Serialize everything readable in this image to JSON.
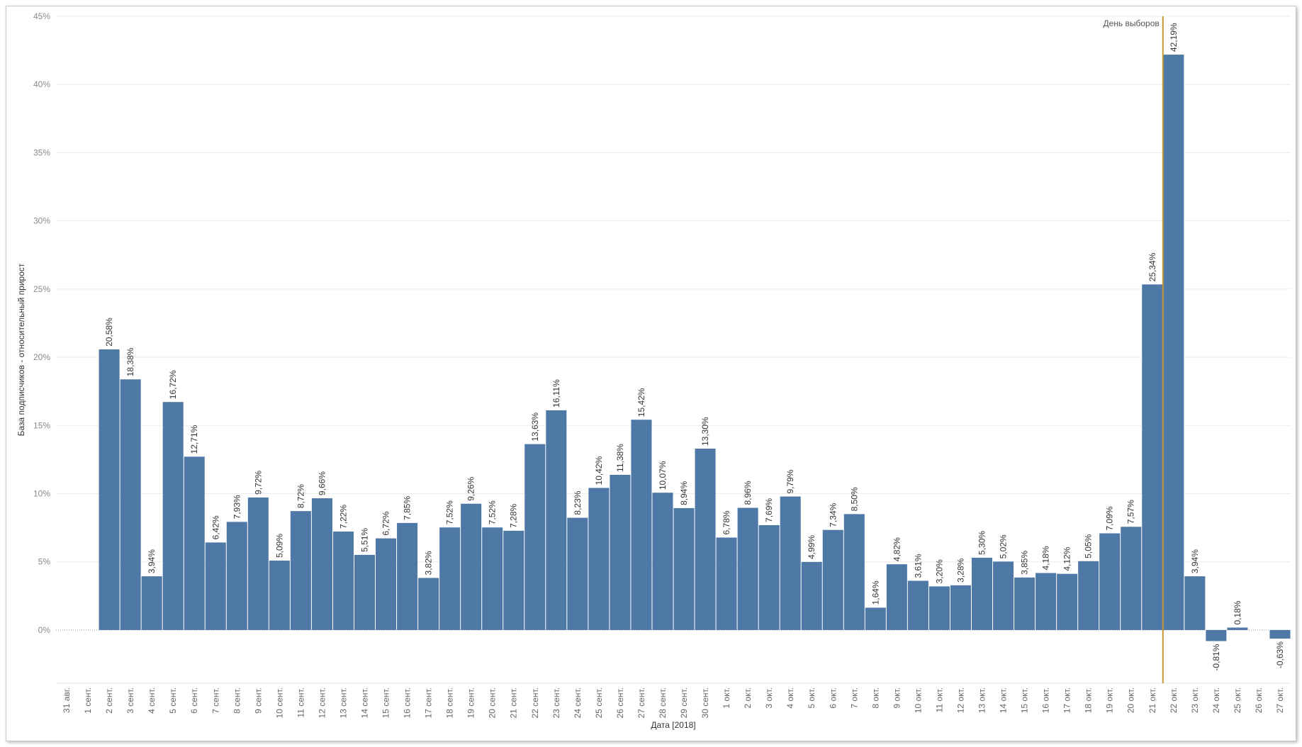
{
  "chart_data": {
    "type": "bar",
    "xlabel": "Дата [2018]",
    "ylabel": "База подписчиков - относительный прирост",
    "ylim": [
      -0.039,
      0.45
    ],
    "yticks": [
      0,
      0.05,
      0.1,
      0.15,
      0.2,
      0.25,
      0.3,
      0.35,
      0.4,
      0.45
    ],
    "ytick_labels": [
      "0%",
      "5%",
      "10%",
      "15%",
      "20%",
      "25%",
      "30%",
      "35%",
      "40%",
      "45%"
    ],
    "grid": true,
    "bar_color": "#4e79a7",
    "annotation": {
      "label": "День выборов",
      "between": [
        "21 окт.",
        "22 окт."
      ],
      "color": "#c8952e"
    },
    "categories": [
      "31 авг.",
      "1 сент.",
      "2 сент.",
      "3 сент.",
      "4 сент.",
      "5 сент.",
      "6 сент.",
      "7 сент.",
      "8 сент.",
      "9 сент.",
      "10 сент.",
      "11 сент.",
      "12 сент.",
      "13 сент.",
      "14 сент.",
      "15 сент.",
      "16 сент.",
      "17 сент.",
      "18 сент.",
      "19 сент.",
      "20 сент.",
      "21 сент.",
      "22 сент.",
      "23 сент.",
      "24 сент.",
      "25 сент.",
      "26 сент.",
      "27 сент.",
      "28 сент.",
      "29 сент.",
      "30 сент.",
      "1 окт.",
      "2 окт.",
      "3 окт.",
      "4 окт.",
      "5 окт.",
      "6 окт.",
      "7 окт.",
      "8 окт.",
      "9 окт.",
      "10 окт.",
      "11 окт.",
      "12 окт.",
      "13 окт.",
      "14 окт.",
      "15 окт.",
      "16 окт.",
      "17 окт.",
      "18 окт.",
      "19 окт.",
      "20 окт.",
      "21 окт.",
      "22 окт.",
      "23 окт.",
      "24 окт.",
      "25 окт.",
      "26 окт.",
      "27 окт."
    ],
    "values": [
      null,
      null,
      0.2058,
      0.1838,
      0.0394,
      0.1672,
      0.1271,
      0.0642,
      0.0793,
      0.0972,
      0.0509,
      0.0872,
      0.0966,
      0.0722,
      0.0551,
      0.0672,
      0.0785,
      0.0382,
      0.0752,
      0.0926,
      0.0752,
      0.0728,
      0.1363,
      0.1611,
      0.0823,
      0.1042,
      0.1138,
      0.1542,
      0.1007,
      0.0894,
      0.133,
      0.0678,
      0.0896,
      0.0769,
      0.0979,
      0.0499,
      0.0734,
      0.085,
      0.0164,
      0.0482,
      0.0361,
      0.032,
      0.0328,
      0.053,
      0.0502,
      0.0385,
      0.0418,
      0.0412,
      0.0505,
      0.0709,
      0.0757,
      0.2534,
      0.4219,
      0.0394,
      -0.0081,
      0.0018,
      null,
      -0.0063
    ],
    "data_labels": [
      "",
      "",
      "20,58%",
      "18,38%",
      "3,94%",
      "16,72%",
      "12,71%",
      "6,42%",
      "7,93%",
      "9,72%",
      "5,09%",
      "8,72%",
      "9,66%",
      "7,22%",
      "5,51%",
      "6,72%",
      "7,85%",
      "3,82%",
      "7,52%",
      "9,26%",
      "7,52%",
      "7,28%",
      "13,63%",
      "16,11%",
      "8,23%",
      "10,42%",
      "11,38%",
      "15,42%",
      "10,07%",
      "8,94%",
      "13,30%",
      "6,78%",
      "8,96%",
      "7,69%",
      "9,79%",
      "4,99%",
      "7,34%",
      "8,50%",
      "1,64%",
      "4,82%",
      "3,61%",
      "3,20%",
      "3,28%",
      "5,30%",
      "5,02%",
      "3,85%",
      "4,18%",
      "4,12%",
      "5,05%",
      "7,09%",
      "7,57%",
      "25,34%",
      "42,19%",
      "3,94%",
      "-0,81%",
      "0,18%",
      "",
      "-0,63%"
    ]
  }
}
